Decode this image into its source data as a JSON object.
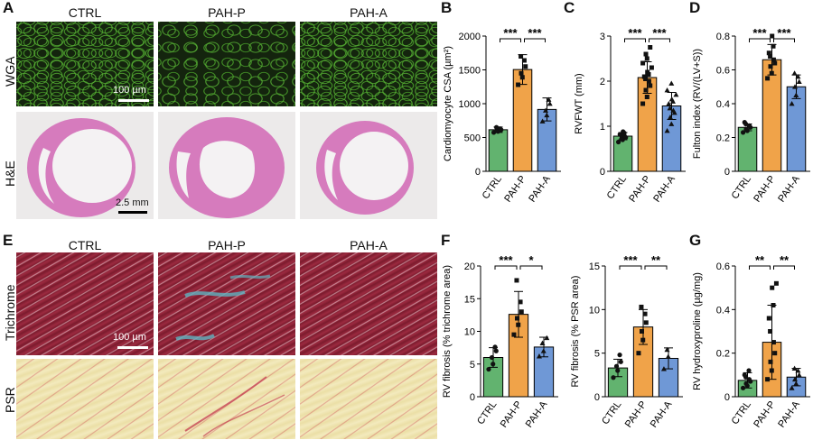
{
  "panels": {
    "A": {
      "label": "A",
      "columns": [
        "CTRL",
        "PAH-P",
        "PAH-A"
      ],
      "rows": [
        "WGA",
        "H&E"
      ],
      "scale_wga": "100 µm",
      "scale_he": "2.5 mm"
    },
    "E": {
      "label": "E",
      "columns": [
        "CTRL",
        "PAH-P",
        "PAH-A"
      ],
      "rows": [
        "Trichrome",
        "PSR"
      ],
      "scale_trichrome": "100 µm"
    }
  },
  "colors": {
    "CTRL": "#62b36f",
    "PAH-P": "#f0a349",
    "PAH-A": "#6f98d6"
  },
  "chart_data": [
    {
      "panel": "B",
      "type": "bar",
      "categories": [
        "CTRL",
        "PAH-P",
        "PAH-A"
      ],
      "values": [
        615,
        1505,
        915
      ],
      "sd": [
        40,
        220,
        170
      ],
      "ylabel": "Cardiomyocyte CSA (µm²)",
      "ylim": [
        0,
        2000
      ],
      "yticks": [
        0,
        500,
        1000,
        1500,
        2000
      ],
      "markers": [
        "circle",
        "square",
        "triangle"
      ],
      "points": [
        [
          575,
          590,
          600,
          615,
          630,
          650
        ],
        [
          1280,
          1390,
          1450,
          1550,
          1640,
          1700
        ],
        [
          740,
          830,
          900,
          1000,
          1060
        ]
      ],
      "significance": [
        {
          "from": 0,
          "to": 1,
          "label": "***"
        },
        {
          "from": 1,
          "to": 2,
          "label": "***"
        }
      ]
    },
    {
      "panel": "C",
      "type": "bar",
      "categories": [
        "CTRL",
        "PAH-P",
        "PAH-A"
      ],
      "values": [
        0.78,
        2.08,
        1.45
      ],
      "sd": [
        0.08,
        0.35,
        0.3
      ],
      "ylabel": "RVFWT (mm)",
      "ylim": [
        0,
        3
      ],
      "yticks": [
        0,
        1,
        2,
        3
      ],
      "markers": [
        "circle",
        "square",
        "triangle"
      ],
      "points": [
        [
          0.65,
          0.7,
          0.72,
          0.75,
          0.78,
          0.8,
          0.82,
          0.85,
          0.88
        ],
        [
          1.5,
          1.65,
          1.8,
          1.9,
          2.0,
          2.05,
          2.1,
          2.15,
          2.2,
          2.3,
          2.4,
          2.5,
          2.6,
          2.75
        ],
        [
          0.9,
          1.05,
          1.2,
          1.3,
          1.35,
          1.4,
          1.5,
          1.55,
          1.6,
          1.7,
          1.8,
          1.95
        ]
      ],
      "significance": [
        {
          "from": 0,
          "to": 1,
          "label": "***"
        },
        {
          "from": 1,
          "to": 2,
          "label": "***"
        }
      ]
    },
    {
      "panel": "D",
      "type": "bar",
      "categories": [
        "CTRL",
        "PAH-P",
        "PAH-A"
      ],
      "values": [
        0.26,
        0.66,
        0.5
      ],
      "sd": [
        0.02,
        0.09,
        0.07
      ],
      "ylabel": "Fulton index (RV/(LV+S))",
      "ylim": [
        0,
        0.8
      ],
      "yticks": [
        0,
        0.2,
        0.4,
        0.6,
        0.8
      ],
      "yticklabels": [
        "0",
        "0.2",
        "0.4",
        "0.6",
        "0.8"
      ],
      "markers": [
        "circle",
        "square",
        "triangle"
      ],
      "points": [
        [
          0.23,
          0.24,
          0.25,
          0.26,
          0.27,
          0.28,
          0.29
        ],
        [
          0.55,
          0.58,
          0.62,
          0.64,
          0.66,
          0.68,
          0.7,
          0.74,
          0.8
        ],
        [
          0.4,
          0.45,
          0.5,
          0.53,
          0.56,
          0.58
        ]
      ],
      "significance": [
        {
          "from": 0,
          "to": 1,
          "label": "***"
        },
        {
          "from": 1,
          "to": 2,
          "label": "***"
        }
      ]
    },
    {
      "panel": "F",
      "type": "bar",
      "categories": [
        "CTRL",
        "PAH-P",
        "PAH-A"
      ],
      "values": [
        6.0,
        12.6,
        7.6
      ],
      "sd": [
        1.5,
        3.5,
        1.5
      ],
      "ylabel": "RV fibrosis (% trichrome area)",
      "ylim": [
        0,
        20
      ],
      "yticks": [
        0,
        5,
        10,
        15,
        20
      ],
      "markers": [
        "circle",
        "square",
        "triangle"
      ],
      "points": [
        [
          4.2,
          5.0,
          6.0,
          7.0,
          7.6
        ],
        [
          9.5,
          11.0,
          12.0,
          13.0,
          14.5,
          17.8
        ],
        [
          6.2,
          7.0,
          8.2,
          9.0
        ]
      ],
      "significance": [
        {
          "from": 0,
          "to": 1,
          "label": "***"
        },
        {
          "from": 1,
          "to": 2,
          "label": "*"
        }
      ]
    },
    {
      "panel": "F2",
      "type": "bar",
      "categories": [
        "CTRL",
        "PAH-P",
        "PAH-A"
      ],
      "values": [
        3.3,
        8.0,
        4.4
      ],
      "sd": [
        1.0,
        2.0,
        1.2
      ],
      "ylabel": "RV fibrosis (% PSR area)",
      "ylim": [
        0,
        15
      ],
      "yticks": [
        0,
        5,
        10,
        15
      ],
      "markers": [
        "circle",
        "square",
        "triangle"
      ],
      "points": [
        [
          2.2,
          3.0,
          3.5,
          4.0,
          4.8
        ],
        [
          5.0,
          6.5,
          7.5,
          8.5,
          9.5,
          10.3
        ],
        [
          3.2,
          4.6,
          5.4
        ]
      ],
      "significance": [
        {
          "from": 0,
          "to": 1,
          "label": "***"
        },
        {
          "from": 1,
          "to": 2,
          "label": "**"
        }
      ]
    },
    {
      "panel": "G",
      "type": "bar",
      "categories": [
        "CTRL",
        "PAH-P",
        "PAH-A"
      ],
      "values": [
        0.075,
        0.25,
        0.09
      ],
      "sd": [
        0.035,
        0.17,
        0.04
      ],
      "ylabel": "RV hydroxyproline (µg/mg)",
      "ylim": [
        0,
        0.6
      ],
      "yticks": [
        0,
        0.2,
        0.4,
        0.6
      ],
      "yticklabels": [
        "0",
        "0.2",
        "0.4",
        "0.6"
      ],
      "markers": [
        "circle",
        "square",
        "triangle"
      ],
      "points": [
        [
          0.04,
          0.05,
          0.06,
          0.07,
          0.08,
          0.09,
          0.1,
          0.12
        ],
        [
          0.08,
          0.12,
          0.16,
          0.2,
          0.25,
          0.3,
          0.36,
          0.42,
          0.5,
          0.52
        ],
        [
          0.04,
          0.06,
          0.08,
          0.1,
          0.12,
          0.13
        ]
      ],
      "significance": [
        {
          "from": 0,
          "to": 1,
          "label": "**"
        },
        {
          "from": 1,
          "to": 2,
          "label": "**"
        }
      ]
    }
  ]
}
